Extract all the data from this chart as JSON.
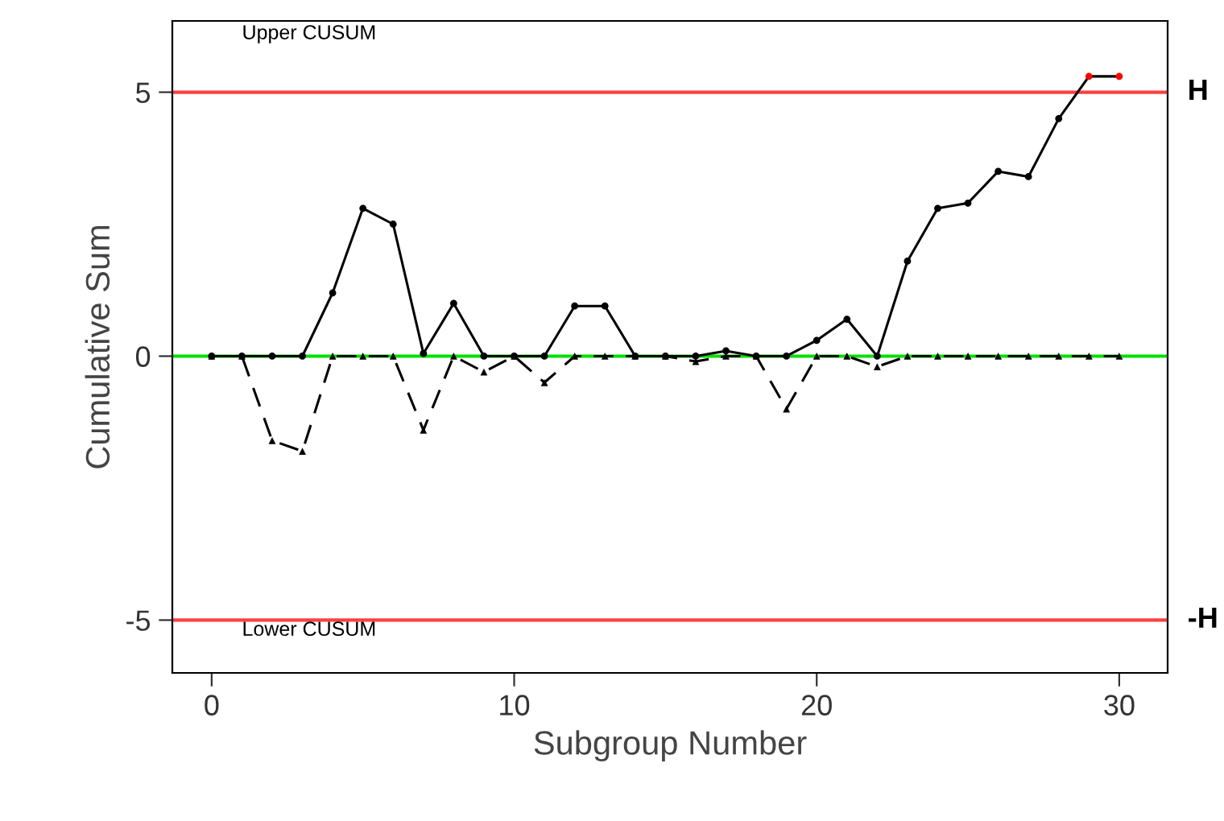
{
  "chart_data": {
    "type": "line",
    "xlabel": "Subgroup Number",
    "ylabel": "Cumulative Sum",
    "x": [
      0,
      1,
      2,
      3,
      4,
      5,
      6,
      7,
      8,
      9,
      10,
      11,
      12,
      13,
      14,
      15,
      16,
      17,
      18,
      19,
      20,
      21,
      22,
      23,
      24,
      25,
      26,
      27,
      28,
      29,
      30
    ],
    "series": [
      {
        "color": "#000000",
        "marker": "circle",
        "line_style": "solid",
        "colors": [
          "#000000",
          "#000000",
          "#000000",
          "#000000",
          "#000000",
          "#000000",
          "#000000",
          "#000000",
          "#000000",
          "#000000",
          "#000000",
          "#000000",
          "#000000",
          "#000000",
          "#000000",
          "#000000",
          "#000000",
          "#000000",
          "#000000",
          "#000000",
          "#000000",
          "#000000",
          "#000000",
          "#000000",
          "#000000",
          "#000000",
          "#000000",
          "#000000",
          "#000000",
          "#ff0000",
          "#ff0000"
        ],
        "values": [
          0,
          0,
          0,
          0,
          1.2,
          2.8,
          2.5,
          0.05,
          1.0,
          0,
          0,
          0,
          0.95,
          0.95,
          0,
          0,
          0,
          0.1,
          0,
          0,
          0.3,
          0.7,
          0,
          1.8,
          2.8,
          2.9,
          3.5,
          3.4,
          4.5,
          5.3,
          5.3
        ]
      },
      {
        "color": "#000000",
        "marker": "triangle",
        "line_style": "dashed",
        "values": [
          0,
          0,
          -1.6,
          -1.8,
          0,
          0,
          0,
          -1.4,
          0,
          -0.3,
          0,
          -0.5,
          0,
          0,
          0,
          0,
          -0.1,
          0,
          0,
          -1.0,
          0,
          0,
          -0.2,
          0,
          0,
          0,
          0,
          0,
          0,
          0,
          0
        ]
      }
    ],
    "xlim": [
      -1.3,
      31.6
    ],
    "ylim": [
      -6,
      6.35
    ],
    "xticks": [
      0,
      10,
      20,
      30
    ],
    "yticks": [
      -5,
      0,
      5
    ],
    "ref_lines": [
      {
        "axis": "y",
        "value": 5,
        "label": "H",
        "color": "#ff4040"
      },
      {
        "axis": "y",
        "value": 0,
        "color": "#00e000"
      },
      {
        "axis": "y",
        "value": -5,
        "label": "-H",
        "color": "#ff4040"
      }
    ],
    "annotations": [
      "Upper CUSUM",
      "Lower CUSUM"
    ],
    "grid": false,
    "legend": false
  }
}
